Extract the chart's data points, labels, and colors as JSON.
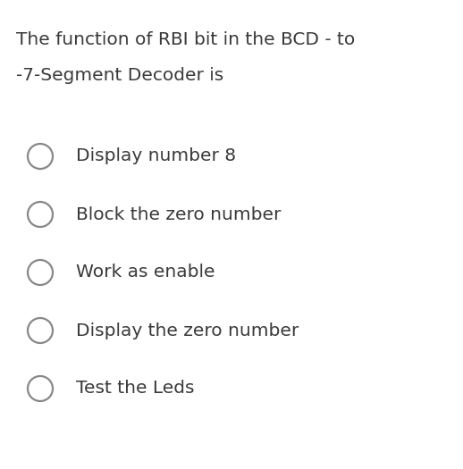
{
  "title_line1": "The function of RBI bit in the BCD - to",
  "title_line2": "-7-Segment Decoder is",
  "options": [
    "Display number 8",
    "Block the zero number",
    "Work as enable",
    "Display the zero number",
    "Test the Leds"
  ],
  "background_color": "#ffffff",
  "text_color": "#3a3a3a",
  "circle_edge_color": "#888888",
  "title_fontsize": 14.5,
  "option_fontsize": 14.5,
  "fig_width": 5.18,
  "fig_height": 5.25,
  "dpi": 100
}
